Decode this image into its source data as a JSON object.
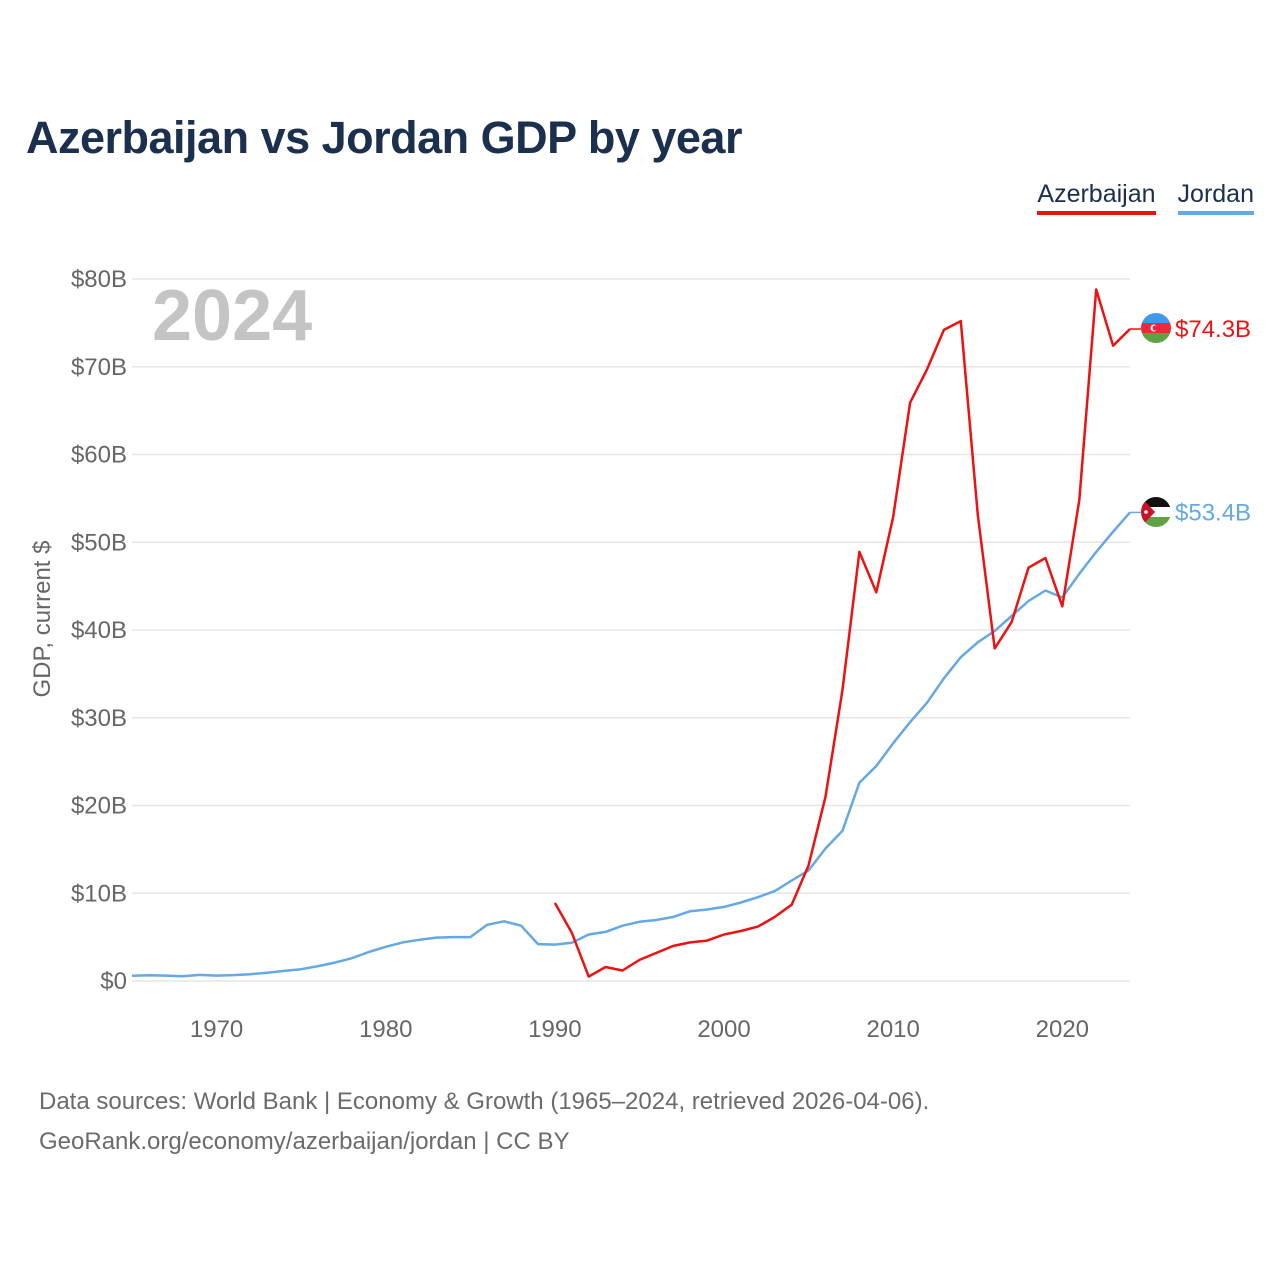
{
  "title": "Azerbaijan vs Jordan GDP by year",
  "legend": {
    "azerbaijan": "Azerbaijan",
    "jordan": "Jordan"
  },
  "year_watermark": "2024",
  "footer": {
    "line1": "Data sources: World Bank | Economy & Growth (1965–2024, retrieved 2026-04-06).",
    "line2": "GeoRank.org/economy/azerbaijan/jordan | CC BY"
  },
  "colors": {
    "azerbaijan": "#ee1111",
    "jordan": "#64a8e4",
    "title": "#1b2f4e",
    "grid": "#e6e6e6"
  },
  "chart_data": {
    "type": "line",
    "title": "Azerbaijan vs Jordan GDP by year",
    "xlabel": "",
    "ylabel": "GDP, current $",
    "xlim": [
      1965,
      2024
    ],
    "ylim": [
      0,
      80
    ],
    "y_unit": "billion current US$",
    "x_ticks": [
      1970,
      1980,
      1990,
      2000,
      2010,
      2020
    ],
    "y_ticks": [
      0,
      10,
      20,
      30,
      40,
      50,
      60,
      70,
      80
    ],
    "y_tick_labels": [
      "$0",
      "$10B",
      "$20B",
      "$30B",
      "$40B",
      "$50B",
      "$60B",
      "$70B",
      "$80B"
    ],
    "grid": true,
    "legend_position": "top-right",
    "series": [
      {
        "name": "Azerbaijan",
        "end_label": "$74.3B",
        "points": [
          [
            1990,
            8.9
          ],
          [
            1991,
            5.5
          ],
          [
            1992,
            0.5
          ],
          [
            1993,
            1.6
          ],
          [
            1994,
            1.2
          ],
          [
            1995,
            2.4
          ],
          [
            1996,
            3.2
          ],
          [
            1997,
            4.0
          ],
          [
            1998,
            4.4
          ],
          [
            1999,
            4.6
          ],
          [
            2000,
            5.3
          ],
          [
            2001,
            5.7
          ],
          [
            2002,
            6.2
          ],
          [
            2003,
            7.3
          ],
          [
            2004,
            8.7
          ],
          [
            2005,
            13.2
          ],
          [
            2006,
            21.0
          ],
          [
            2007,
            33.1
          ],
          [
            2008,
            48.9
          ],
          [
            2009,
            44.3
          ],
          [
            2010,
            52.9
          ],
          [
            2011,
            65.9
          ],
          [
            2012,
            69.7
          ],
          [
            2013,
            74.2
          ],
          [
            2014,
            75.2
          ],
          [
            2015,
            53.1
          ],
          [
            2016,
            37.9
          ],
          [
            2017,
            40.9
          ],
          [
            2018,
            47.1
          ],
          [
            2019,
            48.2
          ],
          [
            2020,
            42.7
          ],
          [
            2021,
            54.8
          ],
          [
            2022,
            78.8
          ],
          [
            2023,
            72.4
          ],
          [
            2024,
            74.3
          ]
        ]
      },
      {
        "name": "Jordan",
        "end_label": "$53.4B",
        "points": [
          [
            1965,
            0.6
          ],
          [
            1966,
            0.65
          ],
          [
            1967,
            0.62
          ],
          [
            1968,
            0.55
          ],
          [
            1969,
            0.7
          ],
          [
            1970,
            0.62
          ],
          [
            1971,
            0.67
          ],
          [
            1972,
            0.78
          ],
          [
            1973,
            0.95
          ],
          [
            1974,
            1.15
          ],
          [
            1975,
            1.35
          ],
          [
            1976,
            1.7
          ],
          [
            1977,
            2.1
          ],
          [
            1978,
            2.6
          ],
          [
            1979,
            3.3
          ],
          [
            1980,
            3.9
          ],
          [
            1981,
            4.4
          ],
          [
            1982,
            4.7
          ],
          [
            1983,
            4.95
          ],
          [
            1984,
            5.0
          ],
          [
            1985,
            5.0
          ],
          [
            1986,
            6.4
          ],
          [
            1987,
            6.8
          ],
          [
            1988,
            6.3
          ],
          [
            1989,
            4.2
          ],
          [
            1990,
            4.15
          ],
          [
            1991,
            4.35
          ],
          [
            1992,
            5.3
          ],
          [
            1993,
            5.6
          ],
          [
            1994,
            6.3
          ],
          [
            1995,
            6.75
          ],
          [
            1996,
            6.95
          ],
          [
            1997,
            7.3
          ],
          [
            1998,
            7.95
          ],
          [
            1999,
            8.15
          ],
          [
            2000,
            8.45
          ],
          [
            2001,
            8.95
          ],
          [
            2002,
            9.55
          ],
          [
            2003,
            10.25
          ],
          [
            2004,
            11.45
          ],
          [
            2005,
            12.6
          ],
          [
            2006,
            15.1
          ],
          [
            2007,
            17.1
          ],
          [
            2008,
            22.6
          ],
          [
            2009,
            24.5
          ],
          [
            2010,
            27.1
          ],
          [
            2011,
            29.5
          ],
          [
            2012,
            31.7
          ],
          [
            2013,
            34.5
          ],
          [
            2014,
            36.9
          ],
          [
            2015,
            38.6
          ],
          [
            2016,
            39.9
          ],
          [
            2017,
            41.6
          ],
          [
            2018,
            43.3
          ],
          [
            2019,
            44.5
          ],
          [
            2020,
            43.7
          ],
          [
            2021,
            46.4
          ],
          [
            2022,
            48.9
          ],
          [
            2023,
            51.2
          ],
          [
            2024,
            53.4
          ]
        ]
      }
    ]
  }
}
